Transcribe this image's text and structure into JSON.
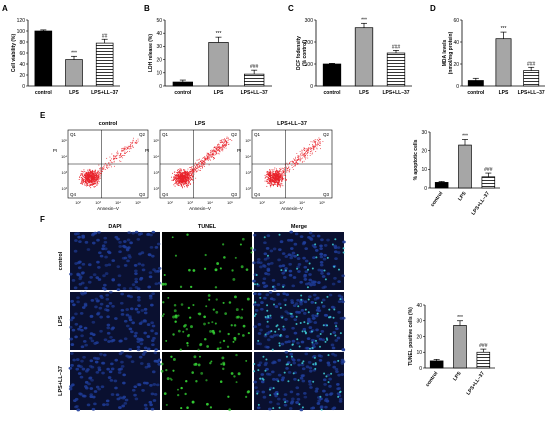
{
  "colors": {
    "control_bar": "#000000",
    "lps_bar": "#a6a6a6",
    "combo_bar_fill": "#ffffff",
    "flow_dots": "#e8222a",
    "dapi": "#1f3d9a",
    "tunel": "#32c832",
    "merge_mix": "#3fd0d8"
  },
  "icons": {
    "combo_pattern": "horizontal-stripes-pattern"
  },
  "panels": {
    "A": "A",
    "B": "B",
    "C": "C",
    "D": "D",
    "E": "E",
    "F": "F"
  },
  "chart_data": [
    {
      "type": "bar",
      "panel": "A",
      "ylabel": "Cell viability (%)",
      "ylim": [
        0,
        120
      ],
      "yticks": [
        "0",
        "20",
        "40",
        "60",
        "80",
        "100",
        "120"
      ],
      "categories": [
        "control",
        "LPS",
        "LPS+LL–37"
      ],
      "values": [
        100,
        48,
        78
      ],
      "errors": [
        2,
        6,
        7
      ],
      "annotations": [
        "",
        "***",
        "##"
      ]
    },
    {
      "type": "bar",
      "panel": "B",
      "ylabel": "LDH release (%)",
      "ylim": [
        0,
        50
      ],
      "yticks": [
        "0",
        "10",
        "20",
        "30",
        "40",
        "50"
      ],
      "categories": [
        "control",
        "LPS",
        "LPS+LL–37"
      ],
      "values": [
        3,
        33,
        9
      ],
      "errors": [
        1.5,
        4,
        3
      ],
      "annotations": [
        "",
        "***",
        "###"
      ]
    },
    {
      "type": "bar",
      "panel": "C",
      "ylabel": "DCF fodensity (% control)",
      "ylim": [
        0,
        300
      ],
      "yticks": [
        "0",
        "100",
        "200",
        "300"
      ],
      "categories": [
        "control",
        "LPS",
        "LPS+LL–37"
      ],
      "values": [
        100,
        265,
        150
      ],
      "errors": [
        3,
        20,
        12
      ],
      "annotations": [
        "",
        "***",
        "###"
      ]
    },
    {
      "type": "bar",
      "panel": "D",
      "ylabel": "MDA levels (nmol/mg protein)",
      "ylim": [
        0,
        60
      ],
      "yticks": [
        "0",
        "20",
        "40",
        "60"
      ],
      "categories": [
        "control",
        "LPS",
        "LPS+LL–37"
      ],
      "values": [
        5,
        43,
        14
      ],
      "errors": [
        2,
        6,
        3
      ],
      "annotations": [
        "",
        "***",
        "###"
      ]
    },
    {
      "type": "bar",
      "panel": "E",
      "ylabel": "% apoptotic cells",
      "ylim": [
        0,
        30
      ],
      "yticks": [
        "0",
        "10",
        "20",
        "30"
      ],
      "categories": [
        "control",
        "LPS",
        "LPS+LL–37"
      ],
      "values": [
        3,
        23,
        6
      ],
      "errors": [
        0.5,
        3,
        2
      ],
      "annotations": [
        "",
        "***",
        "###"
      ]
    },
    {
      "type": "bar",
      "panel": "F",
      "ylabel": "TUNEL positive cells (%)",
      "ylim": [
        0,
        40
      ],
      "yticks": [
        "0",
        "10",
        "20",
        "30",
        "40"
      ],
      "categories": [
        "control",
        "LPS",
        "LPS+LL–37"
      ],
      "values": [
        4.5,
        27,
        10
      ],
      "errors": [
        1,
        3,
        2
      ],
      "annotations": [
        "",
        "***",
        "###"
      ]
    }
  ],
  "flow": {
    "plots": [
      {
        "title": "control",
        "density": 0.25
      },
      {
        "title": "LPS",
        "density": 0.7
      },
      {
        "title": "LPS+LL–37",
        "density": 0.4
      }
    ],
    "quadrants": [
      "Q1",
      "Q2",
      "Q3",
      "Q4"
    ],
    "xlabel": "Annexin–V",
    "ylabel": "PI",
    "ticks": [
      "10²",
      "10³",
      "10⁴",
      "10⁵"
    ]
  },
  "micro": {
    "columns": [
      "DAPI",
      "TUNEL",
      "Merge"
    ],
    "rows": [
      "control",
      "LPS",
      "LPS+LL–37"
    ],
    "tunel_density": [
      0.15,
      0.6,
      0.35
    ]
  }
}
